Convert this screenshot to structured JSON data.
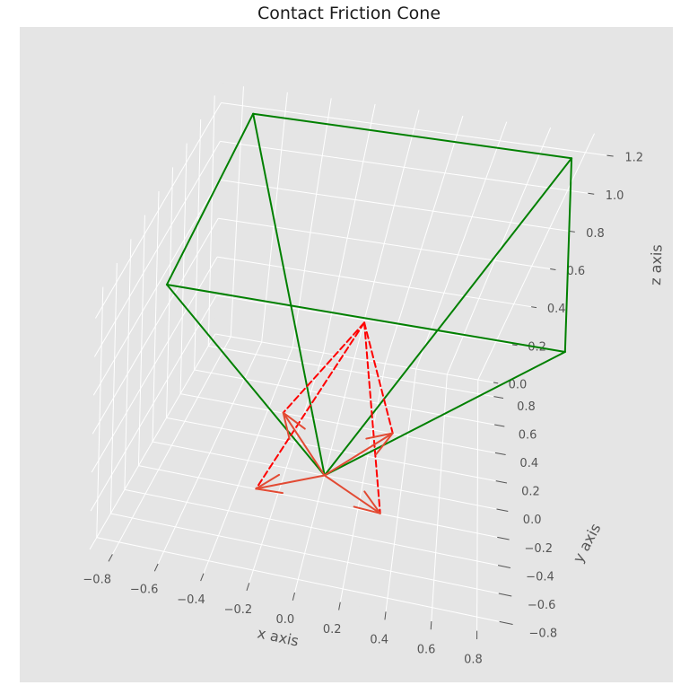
{
  "chart_data": {
    "type": "3d-line",
    "title": "Contact Friction Cone",
    "xlabel": "x axis",
    "ylabel": "y axis",
    "zlabel": "z axis",
    "xlim": [
      -0.9,
      0.9
    ],
    "ylim": [
      -0.9,
      0.9
    ],
    "zlim": [
      0.0,
      1.3
    ],
    "x_ticks": [
      "−0.8",
      "−0.6",
      "−0.4",
      "−0.2",
      "0.0",
      "0.2",
      "0.4",
      "0.6",
      "0.8"
    ],
    "y_ticks": [
      "0.8",
      "0.6",
      "0.4",
      "0.2",
      "0.0",
      "−0.2",
      "−0.4",
      "−0.6",
      "−0.8"
    ],
    "z_ticks": [
      "0.0",
      "0.2",
      "0.4",
      "0.6",
      "0.8",
      "1.0",
      "1.2"
    ],
    "grid": true,
    "style": "ggplot",
    "colors": {
      "cone": "#008000",
      "dashed": "#ff0000",
      "arrows": "#e24a33",
      "pane": "#e5e5e5",
      "grid": "#ffffff"
    },
    "series": [
      {
        "kind": "cone-edges",
        "apex": [
          0,
          0,
          0
        ],
        "base_vertices": [
          [
            -0.7,
            -0.7,
            1.3
          ],
          [
            0.7,
            -0.7,
            1.3
          ],
          [
            0.7,
            0.7,
            1.3
          ],
          [
            -0.7,
            0.7,
            1.3
          ]
        ]
      },
      {
        "kind": "dashed-edges",
        "apex": [
          0,
          0,
          0.8
        ],
        "base_vertices": [
          [
            -0.3,
            -0.3,
            0.07
          ],
          [
            0.3,
            -0.3,
            0.07
          ],
          [
            0.3,
            0.3,
            0.07
          ],
          [
            -0.3,
            0.3,
            0.07
          ]
        ]
      },
      {
        "kind": "arrows",
        "origin": [
          0,
          0,
          0
        ],
        "vectors": [
          [
            -0.3,
            -0.3,
            0.07
          ],
          [
            0.3,
            -0.3,
            0.07
          ],
          [
            0.3,
            0.3,
            0.07
          ],
          [
            -0.3,
            0.3,
            0.07
          ]
        ]
      }
    ]
  }
}
